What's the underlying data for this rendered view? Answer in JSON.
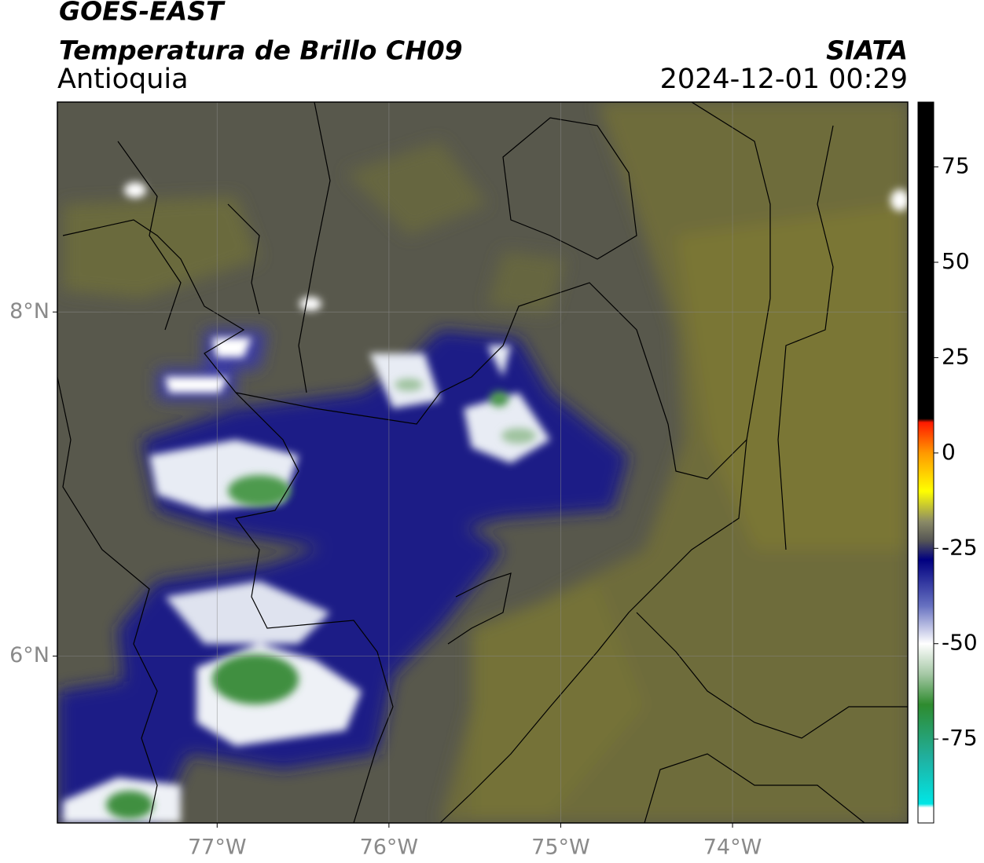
{
  "header": {
    "title": "GOES-EAST",
    "subtitle": "Temperatura de Brillo CH09",
    "region": "Antioquia",
    "source": "SIATA",
    "datetime": "2024-12-01 00:29"
  },
  "map": {
    "lonlim": [
      -77.93,
      -72.98
    ],
    "latlim": [
      5.03,
      9.22
    ],
    "lon_ticks": [
      {
        "value": -77,
        "label": "77°W"
      },
      {
        "value": -76,
        "label": "76°W"
      },
      {
        "value": -75,
        "label": "75°W"
      },
      {
        "value": -74,
        "label": "74°W"
      }
    ],
    "lat_ticks": [
      {
        "value": 8,
        "label": "8°N"
      },
      {
        "value": 6,
        "label": "6°N"
      }
    ],
    "grid": true
  },
  "colorbar": {
    "range": [
      -97,
      92
    ],
    "ticks": [
      75,
      50,
      25,
      0,
      -25,
      -50,
      -75
    ],
    "colormap": [
      {
        "value": 92,
        "color": "#000000"
      },
      {
        "value": 9,
        "color": "#000000"
      },
      {
        "value": 8,
        "color": "#ff1a00"
      },
      {
        "value": 0,
        "color": "#ff9900"
      },
      {
        "value": -10,
        "color": "#ffff00"
      },
      {
        "value": -18,
        "color": "#8a8a66"
      },
      {
        "value": -23,
        "color": "#555555"
      },
      {
        "value": -28,
        "color": "#000080"
      },
      {
        "value": -40,
        "color": "#6670c0"
      },
      {
        "value": -50,
        "color": "#ffffff"
      },
      {
        "value": -58,
        "color": "#a5c8a5"
      },
      {
        "value": -66,
        "color": "#2e8b2e"
      },
      {
        "value": -80,
        "color": "#20b0a0"
      },
      {
        "value": -92,
        "color": "#00e6e6"
      },
      {
        "value": -93,
        "color": "#ffffff"
      },
      {
        "value": -97,
        "color": "#ffffff"
      }
    ]
  }
}
